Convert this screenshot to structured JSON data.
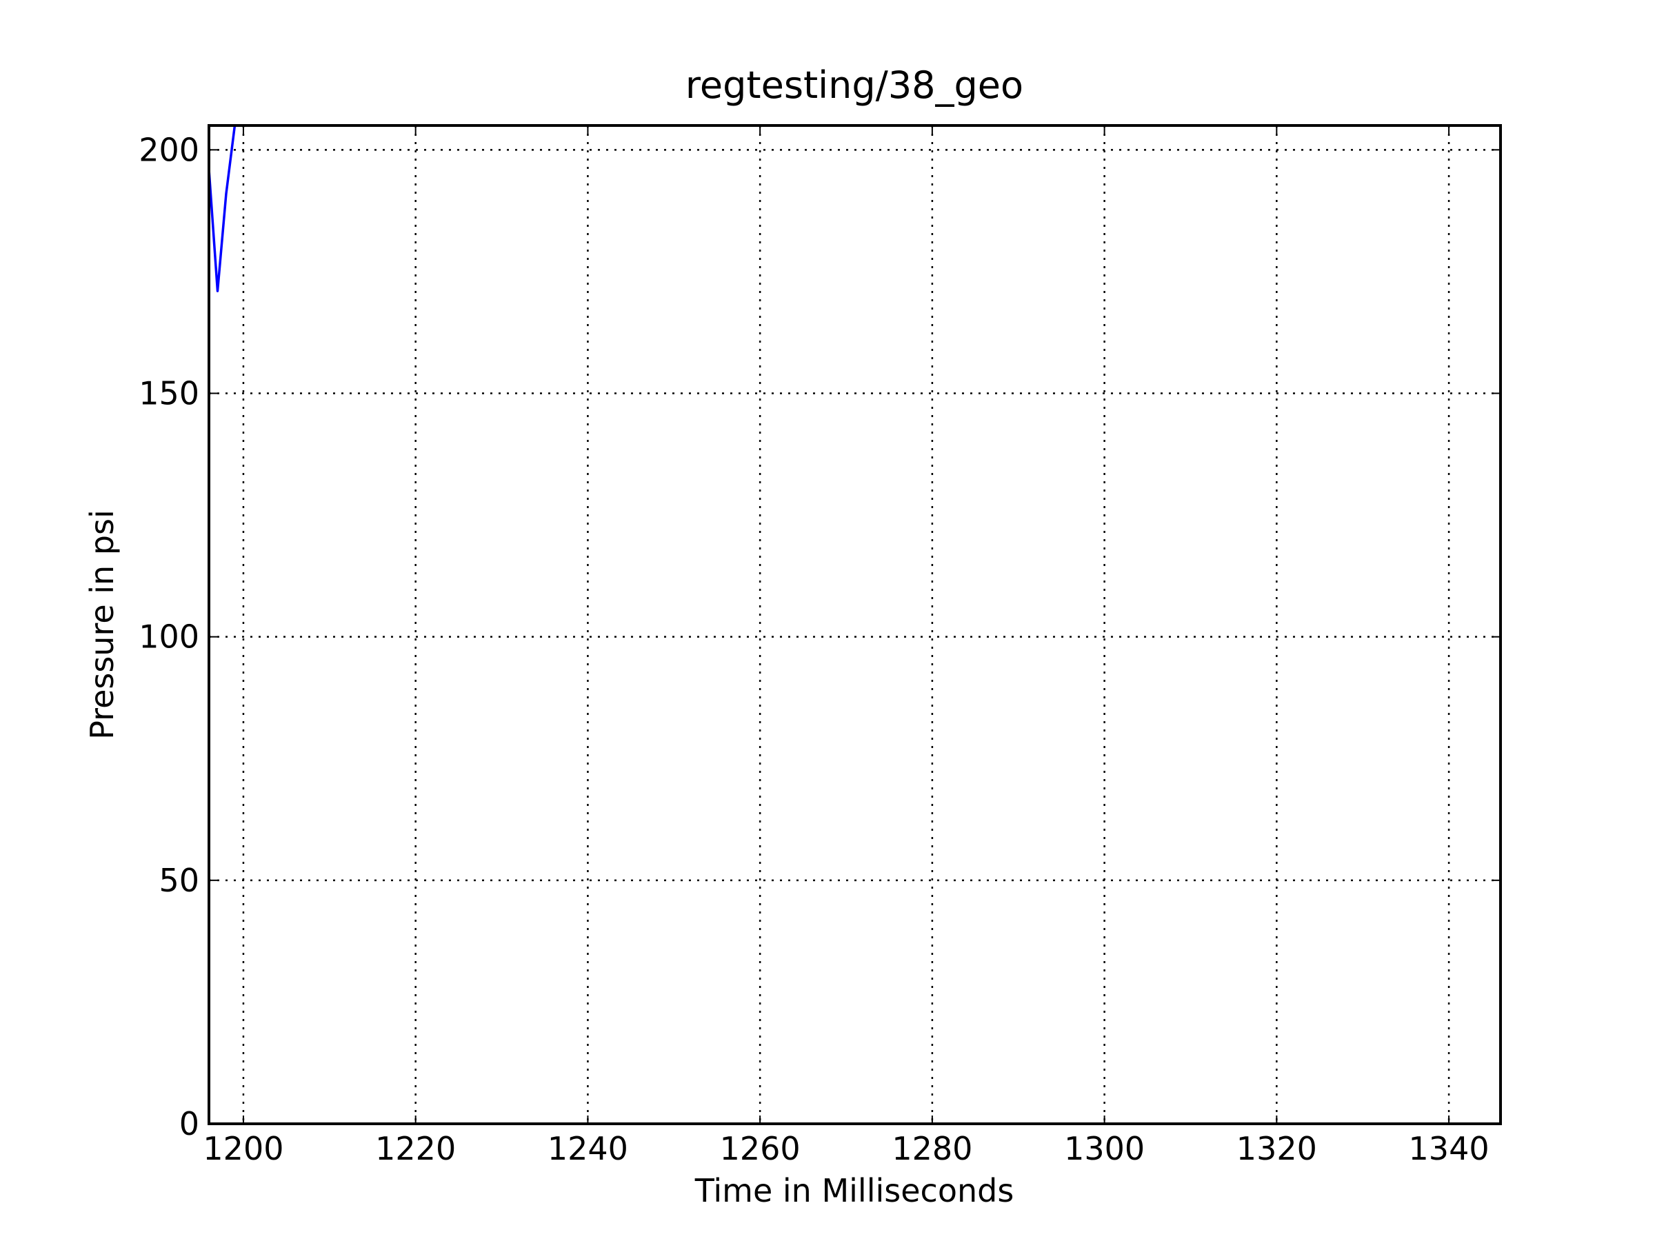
{
  "chart_data": {
    "type": "line",
    "title": "regtesting/38_geo",
    "xlabel": "Time in Milliseconds",
    "ylabel": "Pressure in psi",
    "xlim": [
      1196,
      1346
    ],
    "ylim": [
      0,
      205
    ],
    "xticks": [
      1200,
      1220,
      1240,
      1260,
      1280,
      1300,
      1320,
      1340
    ],
    "yticks": [
      0,
      50,
      100,
      150,
      200
    ],
    "grid": true,
    "series": [
      {
        "color": "#0000ff",
        "x": [
          1196,
          1197,
          1198,
          1199
        ],
        "y": [
          196,
          171,
          191,
          205
        ]
      }
    ]
  }
}
